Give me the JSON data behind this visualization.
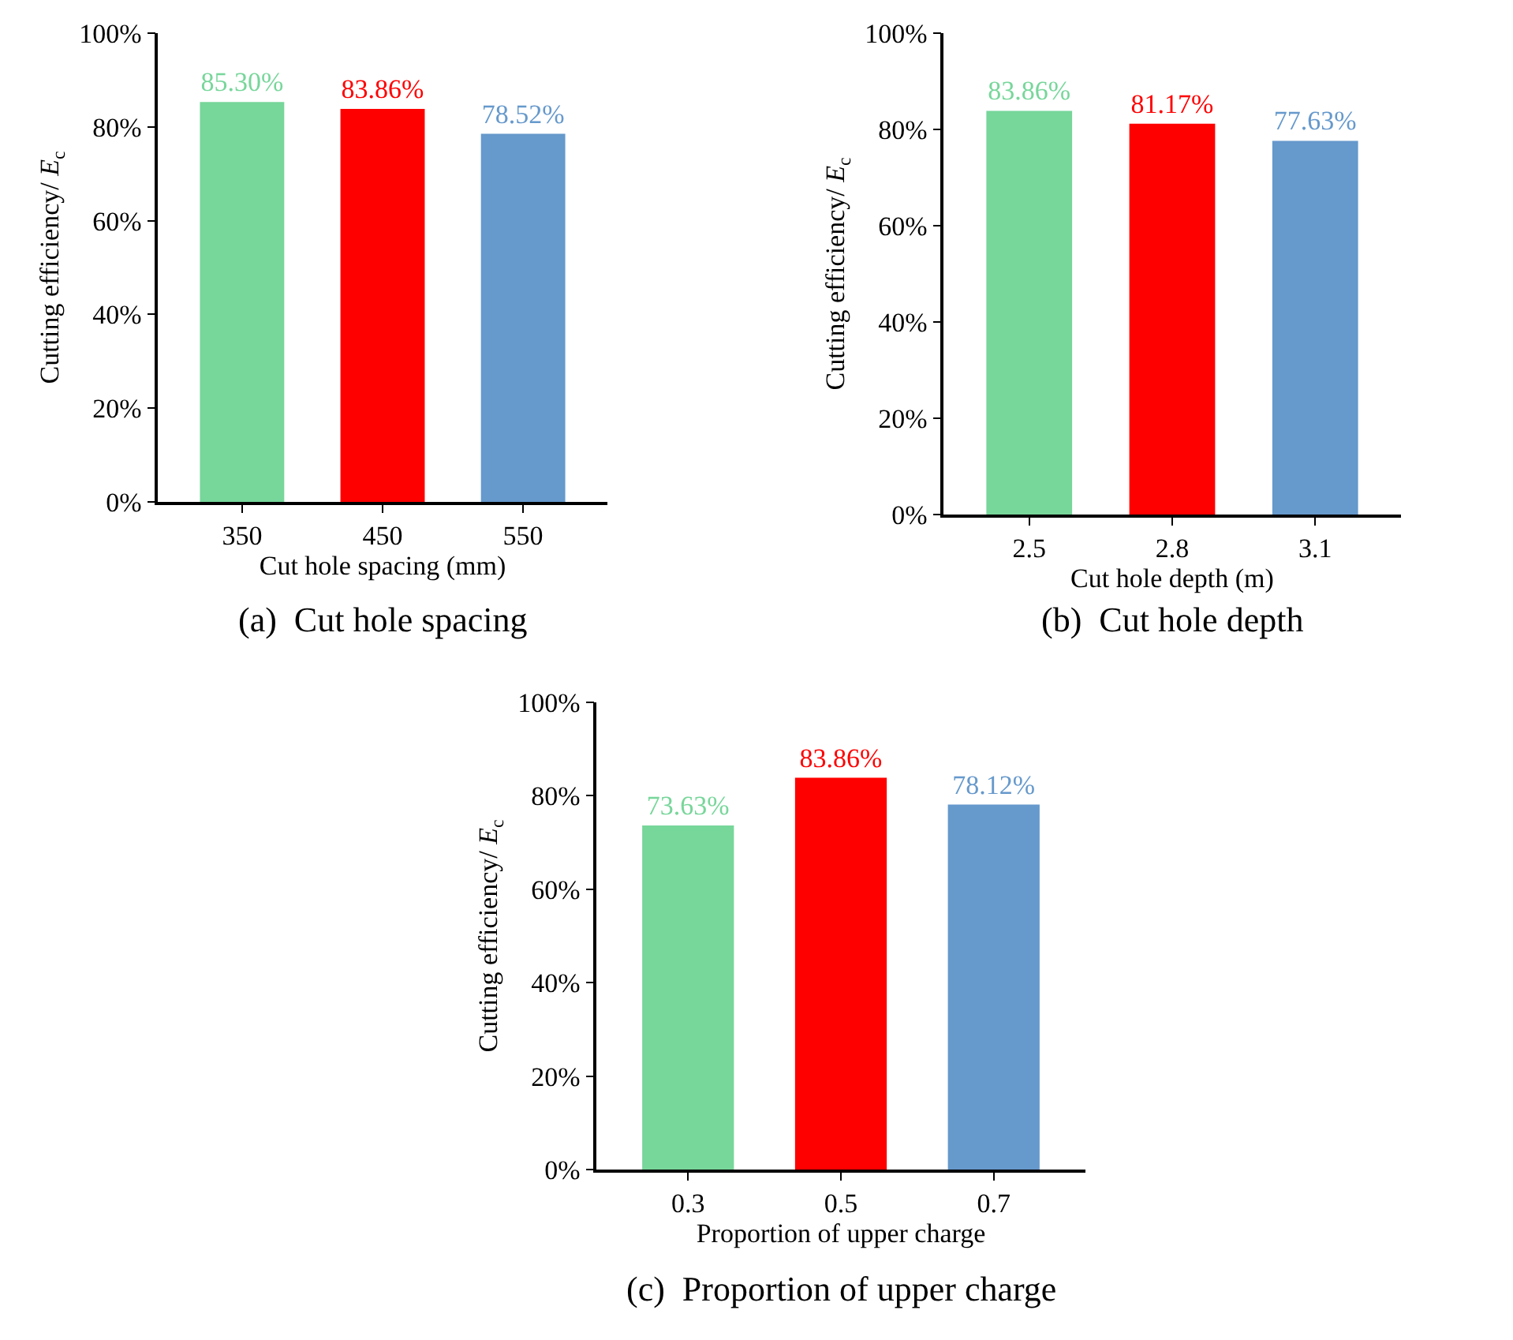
{
  "chart_data": [
    {
      "type": "bar",
      "categories": [
        "350",
        "450",
        "550"
      ],
      "values": [
        85.3,
        83.86,
        78.52
      ],
      "colors": [
        "#77d69a",
        "#ff0000",
        "#6699cc"
      ],
      "value_labels": [
        "85.30%",
        "83.86%",
        "78.52%"
      ],
      "xlabel": "Cut hole spacing (mm)",
      "ylabel": "Cutting efficiency/ E$_{c}$",
      "ylim": [
        0,
        100
      ],
      "yticks": [
        {
          "value": 0,
          "label": "0%"
        },
        {
          "value": 20,
          "label": "20%"
        },
        {
          "value": 40,
          "label": "40%"
        },
        {
          "value": 60,
          "label": "60%"
        },
        {
          "value": 80,
          "label": "80%"
        },
        {
          "value": 100,
          "label": "100%"
        }
      ],
      "annotations": [
        "(a)  Cut hole spacing"
      ]
    },
    {
      "type": "bar",
      "categories": [
        "2.5",
        "2.8",
        "3.1"
      ],
      "values": [
        83.86,
        81.17,
        77.63
      ],
      "colors": [
        "#77d69a",
        "#ff0000",
        "#6699cc"
      ],
      "value_labels": [
        "83.86%",
        "81.17%",
        "77.63%"
      ],
      "xlabel": "Cut hole depth (m)",
      "ylabel": "Cutting efficiency/ E$_{c}$",
      "ylim": [
        0,
        100
      ],
      "yticks": [
        {
          "value": 0,
          "label": "0%"
        },
        {
          "value": 20,
          "label": "20%"
        },
        {
          "value": 40,
          "label": "40%"
        },
        {
          "value": 60,
          "label": "60%"
        },
        {
          "value": 80,
          "label": "80%"
        },
        {
          "value": 100,
          "label": "100%"
        }
      ],
      "annotations": [
        "(b)  Cut hole depth"
      ]
    },
    {
      "type": "bar",
      "categories": [
        "0.3",
        "0.5",
        "0.7"
      ],
      "values": [
        73.63,
        83.86,
        78.12
      ],
      "colors": [
        "#77d69a",
        "#ff0000",
        "#6699cc"
      ],
      "value_labels": [
        "73.63%",
        "83.86%",
        "78.12%"
      ],
      "xlabel": "Proportion of upper charge",
      "ylabel": "Cutting efficiency/ E$_{c}$",
      "ylim": [
        0,
        100
      ],
      "yticks": [
        {
          "value": 0,
          "label": "0%"
        },
        {
          "value": 20,
          "label": "20%"
        },
        {
          "value": 40,
          "label": "40%"
        },
        {
          "value": 60,
          "label": "60%"
        },
        {
          "value": 80,
          "label": "80%"
        },
        {
          "value": 100,
          "label": "100%"
        }
      ],
      "annotations": [
        "(c)  Proportion of upper charge"
      ]
    }
  ]
}
